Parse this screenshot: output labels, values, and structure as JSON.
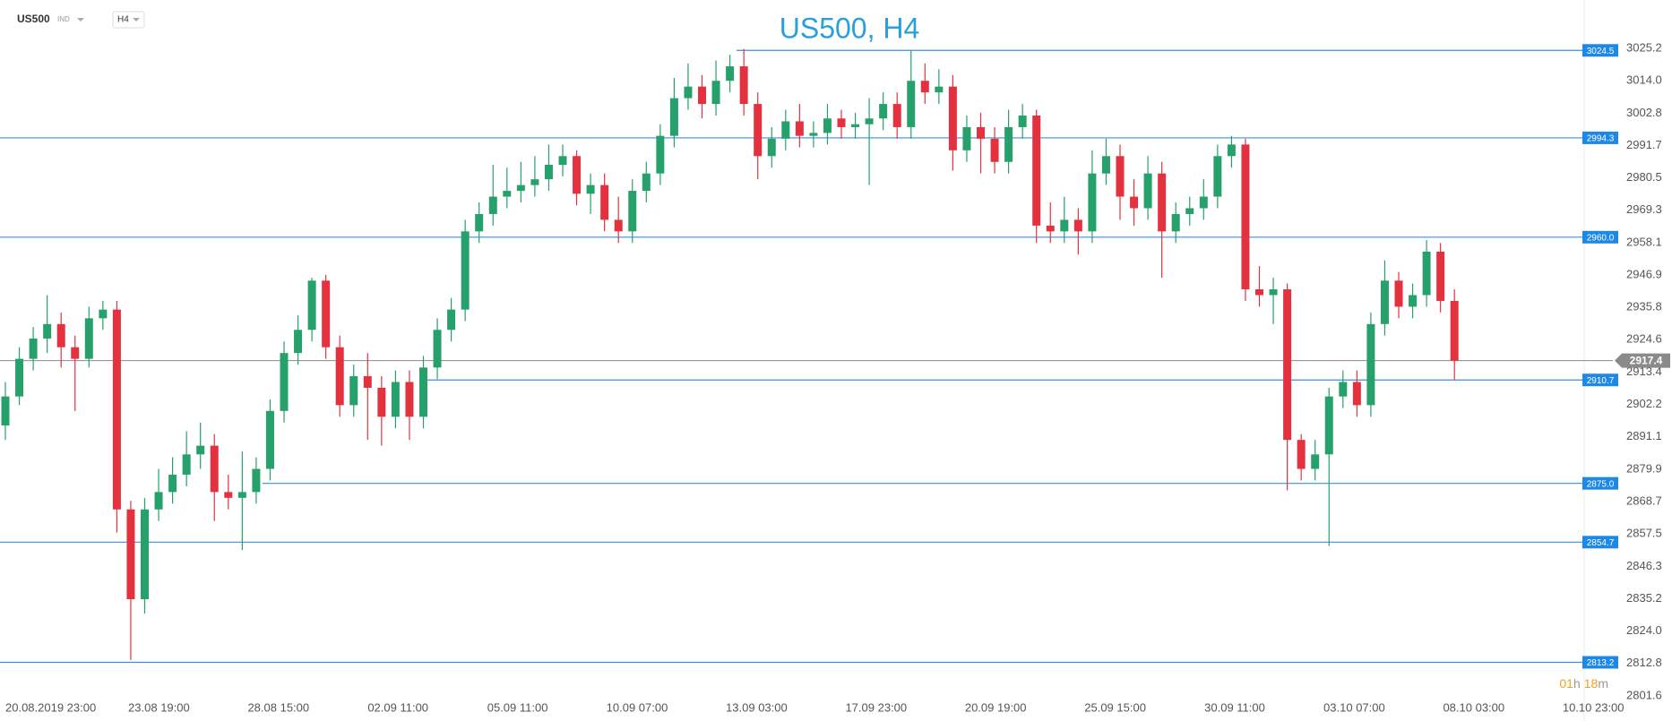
{
  "chart_data": {
    "type": "candlestick",
    "title": "US500, H4",
    "symbol": "US500",
    "symbol_class": "IND",
    "timeframe": "H4",
    "timer": [
      "01",
      "h",
      "18",
      "m"
    ],
    "up_color": "#27a16b",
    "down_color": "#e3313f",
    "level_color": "#3b8ee0",
    "x_labels": [
      "20.08.2019  23:00",
      "23.08  19:00",
      "28.08  15:00",
      "02.09  11:00",
      "05.09  11:00",
      "10.09  07:00",
      "13.09  03:00",
      "17.09  23:00",
      "20.09  19:00",
      "25.09  15:00",
      "30.09  11:00",
      "03.10  07:00",
      "08.10  03:00",
      "10.10  23:00"
    ],
    "ylim": [
      2801.6,
      3025.2
    ],
    "yticks": [
      3025.2,
      {
        "value": 3014.0,
        "label": "3014.0"
      },
      3002.8,
      2991.7,
      2980.5,
      2969.3,
      2958.1,
      2946.9,
      2935.8,
      2924.6,
      2913.4,
      2902.2,
      2891.1,
      2879.9,
      2868.7,
      2857.5,
      2846.3,
      2835.2,
      {
        "value": 2824.0,
        "label": "2824.0"
      },
      2812.8,
      2801.6
    ],
    "levels": [
      3024.5,
      2994.3,
      {
        "value": 2960.0,
        "label": "2960.0"
      },
      2910.7,
      {
        "value": 2875.0,
        "label": "2875.0"
      },
      2854.7,
      2813.2
    ],
    "current_price": 2917.4,
    "candles": [
      [
        2895,
        2910,
        2890,
        2905
      ],
      [
        2905,
        2922,
        2902,
        2918
      ],
      [
        2918,
        2929,
        2914,
        2925
      ],
      [
        2925,
        2940,
        2920,
        2930
      ],
      [
        2930,
        2934,
        2915,
        2922
      ],
      [
        2922,
        2926,
        2900,
        2918
      ],
      [
        2918,
        2936,
        2915,
        2932
      ],
      [
        2932,
        2938,
        2928,
        2935
      ],
      [
        2935,
        2938,
        2858,
        2866
      ],
      [
        2866,
        2869,
        2814,
        2835
      ],
      [
        2835,
        2870,
        2830,
        2866
      ],
      [
        2866,
        2880,
        2862,
        2872
      ],
      [
        2872,
        2884,
        2868,
        2878
      ],
      [
        2878,
        2893,
        2874,
        2885
      ],
      [
        2885,
        2896,
        2880,
        2888
      ],
      [
        2888,
        2892,
        2862,
        2872
      ],
      [
        2872,
        2878,
        2866,
        2870
      ],
      [
        2870,
        2886,
        2852,
        2872
      ],
      [
        2872,
        2884,
        2868,
        2880
      ],
      [
        2880,
        2904,
        2876,
        2900
      ],
      [
        2900,
        2924,
        2896,
        2920
      ],
      [
        2920,
        2933,
        2916,
        2928
      ],
      [
        2928,
        2946,
        2924,
        2945
      ],
      [
        2945,
        2947,
        2918,
        2922
      ],
      [
        2922,
        2926,
        2898,
        2902
      ],
      [
        2902,
        2916,
        2898,
        2912
      ],
      [
        2912,
        2920,
        2890,
        2908
      ],
      [
        2908,
        2912,
        2888,
        2898
      ],
      [
        2898,
        2914,
        2894,
        2910
      ],
      [
        2910,
        2914,
        2890,
        2898
      ],
      [
        2898,
        2919,
        2894,
        2915
      ],
      [
        2915,
        2932,
        2911,
        2928
      ],
      [
        2928,
        2939,
        2924,
        2935
      ],
      [
        2935,
        2966,
        2931,
        2962
      ],
      [
        2962,
        2972,
        2958,
        2968
      ],
      [
        2968,
        2985,
        2964,
        2974
      ],
      [
        2974,
        2984,
        2970,
        2976
      ],
      [
        2976,
        2986,
        2972,
        2978
      ],
      [
        2978,
        2988,
        2974,
        2980
      ],
      [
        2980,
        2992,
        2976,
        2985
      ],
      [
        2985,
        2992,
        2981,
        2988
      ],
      [
        2988,
        2990,
        2971,
        2975
      ],
      [
        2975,
        2982,
        2968,
        2978
      ],
      [
        2978,
        2982,
        2962,
        2966
      ],
      [
        2966,
        2974,
        2958,
        2962
      ],
      [
        2962,
        2980,
        2958,
        2976
      ],
      [
        2976,
        2986,
        2972,
        2982
      ],
      [
        2982,
        2999,
        2978,
        2995
      ],
      [
        2995,
        3015,
        2991,
        3008
      ],
      [
        3008,
        3020,
        3004,
        3012
      ],
      [
        3012,
        3016,
        3001,
        3006
      ],
      [
        3006,
        3021,
        3002,
        3014
      ],
      [
        3014,
        3023,
        3010,
        3019
      ],
      [
        3019,
        3025,
        3002,
        3006
      ],
      [
        3006,
        3010,
        2980,
        2988
      ],
      [
        2988,
        2998,
        2984,
        2994
      ],
      [
        2994,
        3004,
        2990,
        3000
      ],
      [
        3000,
        3006,
        2991,
        2995
      ],
      [
        2995,
        3000,
        2991,
        2996
      ],
      [
        2996,
        3006,
        2992,
        3001
      ],
      [
        3001,
        3004,
        2994,
        2998
      ],
      [
        2998,
        3003,
        2994,
        2999
      ],
      [
        2999,
        3008,
        2978,
        3001
      ],
      [
        3001,
        3010,
        2997,
        3006
      ],
      [
        3006,
        3010,
        2994,
        2998
      ],
      [
        2998,
        3024.5,
        2994,
        3014
      ],
      [
        3014,
        3020,
        3006,
        3010
      ],
      [
        3010,
        3018,
        3006,
        3012
      ],
      [
        3012,
        3016,
        2983,
        2990
      ],
      [
        2990,
        3002,
        2986,
        2998
      ],
      [
        2998,
        3003,
        2982,
        2994
      ],
      [
        2994,
        2998,
        2982,
        2986
      ],
      [
        2986,
        3004,
        2982,
        2998
      ],
      [
        2998,
        3006,
        2994,
        3002
      ],
      [
        3002,
        3004,
        2958,
        2964
      ],
      [
        2964,
        2972,
        2958,
        2962
      ],
      [
        2962,
        2974,
        2958,
        2966
      ],
      [
        2966,
        2970,
        2954,
        2962
      ],
      [
        2962,
        2990,
        2958,
        2982
      ],
      [
        2982,
        2994,
        2978,
        2988
      ],
      [
        2988,
        2992,
        2966,
        2974
      ],
      [
        2974,
        2980,
        2964,
        2970
      ],
      [
        2970,
        2988,
        2966,
        2982
      ],
      [
        2982,
        2986,
        2946,
        2962
      ],
      [
        2962,
        2972,
        2958,
        2968
      ],
      [
        2968,
        2974,
        2964,
        2970
      ],
      [
        2970,
        2980,
        2966,
        2974
      ],
      [
        2974,
        2992,
        2970,
        2988
      ],
      [
        2988,
        2995,
        2984,
        2992
      ],
      [
        2992,
        2994,
        2938,
        2942
      ],
      [
        2942,
        2950,
        2936,
        2940
      ],
      [
        2940,
        2946,
        2930,
        2942
      ],
      [
        2942,
        2944,
        2872.6,
        2890
      ],
      [
        2890,
        2892,
        2876,
        2880
      ],
      [
        2880,
        2890,
        2876,
        2885
      ],
      [
        2885,
        2908,
        2853.4,
        2905
      ],
      [
        2905,
        2914,
        2901,
        2910
      ],
      [
        2910,
        2914,
        2898,
        2902
      ],
      [
        2902,
        2934,
        2898,
        2930
      ],
      [
        2930,
        2952,
        2926,
        2945
      ],
      [
        2945,
        2948,
        2932,
        2936
      ],
      [
        2936,
        2944,
        2932,
        2940
      ],
      [
        2940,
        2959,
        2936,
        2955
      ],
      [
        2955,
        2958,
        2934,
        2938
      ],
      [
        2938,
        2942,
        2910.8,
        2917.4
      ]
    ]
  }
}
